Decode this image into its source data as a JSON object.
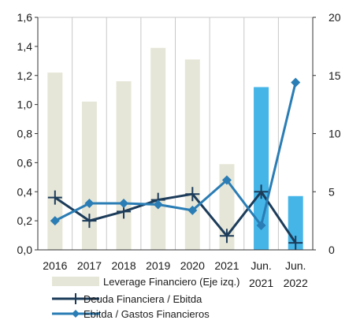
{
  "chart_data": {
    "type": "bar",
    "categories": [
      "2016",
      "2017",
      "2018",
      "2019",
      "2020",
      "2021",
      "Jun.\n2021",
      "Jun.\n2022"
    ],
    "series": [
      {
        "name": "Leverage Financiero (Eje izq.)",
        "kind": "bar",
        "axis": "left",
        "values": [
          1.22,
          1.02,
          1.16,
          1.39,
          1.31,
          0.59,
          1.12,
          0.37
        ],
        "colors": [
          "#e6e6d8",
          "#e6e6d8",
          "#e6e6d8",
          "#e6e6d8",
          "#e6e6d8",
          "#e6e6d8",
          "#45b5e8",
          "#45b5e8"
        ]
      },
      {
        "name": "Deuda Financiera / Ebitda",
        "kind": "line",
        "axis": "right",
        "marker": "plus",
        "color": "#1c3c5a",
        "values": [
          4.5,
          2.5,
          3.3,
          4.3,
          4.8,
          1.2,
          5.0,
          0.6
        ]
      },
      {
        "name": "Ebitda / Gastos Financieros",
        "kind": "line",
        "axis": "right",
        "marker": "diamond",
        "color": "#2a7db5",
        "values": [
          2.5,
          4.0,
          4.0,
          3.9,
          3.4,
          6.0,
          2.1,
          14.4
        ]
      }
    ],
    "left_axis": {
      "ylim": [
        0,
        1.6
      ],
      "ticks": [
        "0,0",
        "0,2",
        "0,4",
        "0,6",
        "0,8",
        "1,0",
        "1,2",
        "1,4",
        "1,6"
      ]
    },
    "right_axis": {
      "ylim": [
        0,
        20
      ],
      "ticks": [
        "0",
        "5",
        "10",
        "15",
        "20"
      ]
    },
    "grid": "vertical",
    "legend_position": "bottom"
  }
}
